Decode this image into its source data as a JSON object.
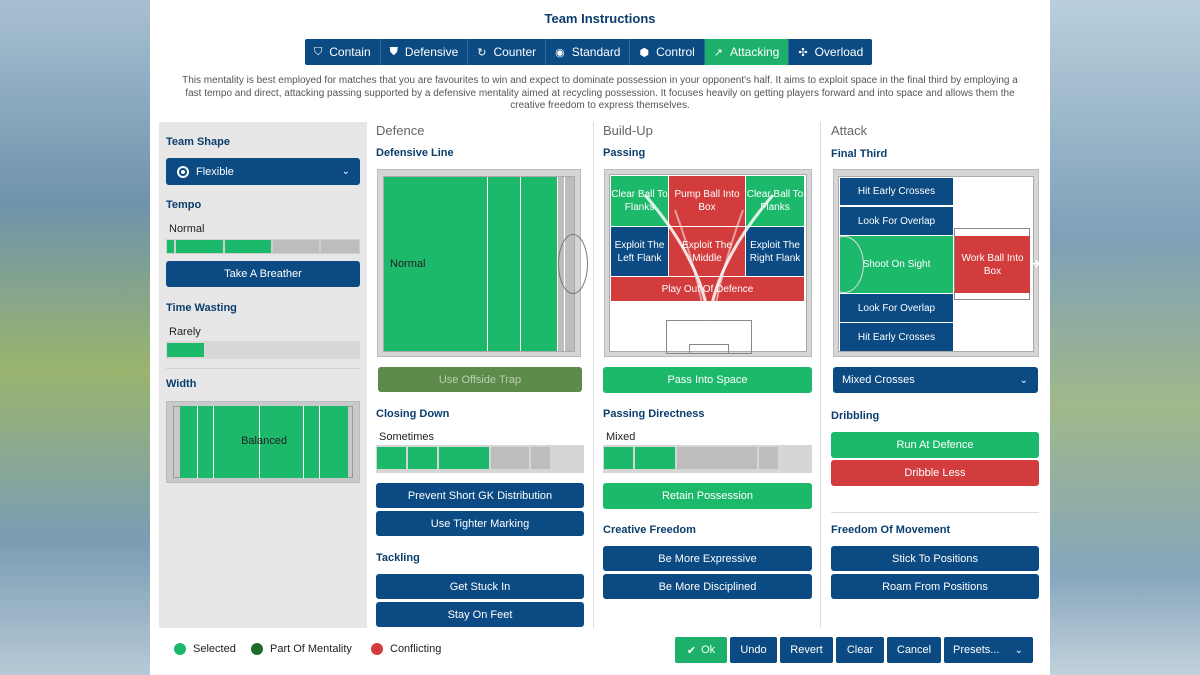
{
  "title": "Team Instructions",
  "mentality_tabs": [
    {
      "label": "Contain",
      "icon": "shield-icon"
    },
    {
      "label": "Defensive",
      "icon": "shield-icon"
    },
    {
      "label": "Counter",
      "icon": "counter-icon"
    },
    {
      "label": "Standard",
      "icon": "standard-icon"
    },
    {
      "label": "Control",
      "icon": "control-icon"
    },
    {
      "label": "Attacking",
      "icon": "attacking-icon",
      "selected": true
    },
    {
      "label": "Overload",
      "icon": "overload-icon"
    }
  ],
  "description": "This mentality is best employed for matches that you are favourites to win and expect to dominate possession in your opponent's half. It aims to exploit space in the final third by employing a fast tempo and direct, attacking passing supported by a defensive mentality aimed at recycling possession. It focuses heavily on getting players forward and into space and allows them the creative freedom to express themselves.",
  "left": {
    "team_shape_label": "Team Shape",
    "team_shape_value": "Flexible",
    "tempo_label": "Tempo",
    "tempo_value": "Normal",
    "tempo_level": 3,
    "take_breather": "Take A Breather",
    "time_wasting_label": "Time Wasting",
    "time_wasting_value": "Rarely",
    "width_label": "Width",
    "width_value": "Balanced"
  },
  "defence": {
    "header": "Defence",
    "line_label": "Defensive Line",
    "line_value": "Normal",
    "offside_trap": "Use Offside Trap",
    "closing_label": "Closing Down",
    "closing_value": "Sometimes",
    "prevent_gk": "Prevent Short GK Distribution",
    "tighter_marking": "Use Tighter Marking",
    "tackling_label": "Tackling",
    "get_stuck_in": "Get Stuck In",
    "stay_on_feet": "Stay On Feet"
  },
  "buildup": {
    "header": "Build-Up",
    "passing_label": "Passing",
    "zones": {
      "clear_left": "Clear Ball To Flanks",
      "pump": "Pump Ball Into Box",
      "clear_right": "Clear Ball To Flanks",
      "exploit_left": "Exploit The Left Flank",
      "exploit_middle": "Exploit The Middle",
      "exploit_right": "Exploit The Right Flank",
      "play_out": "Play Out Of Defence"
    },
    "pass_into_space": "Pass Into Space",
    "directness_label": "Passing Directness",
    "directness_value": "Mixed",
    "retain_possession": "Retain Possession",
    "creative_label": "Creative Freedom",
    "more_expressive": "Be More Expressive",
    "more_disciplined": "Be More Disciplined"
  },
  "attack": {
    "header": "Attack",
    "final_third_label": "Final Third",
    "zones": {
      "hit_early_top": "Hit Early Crosses",
      "overlap_top": "Look For Overlap",
      "shoot_on_sight": "Shoot On Sight",
      "work_ball": "Work Ball Into Box",
      "overlap_bottom": "Look For Overlap",
      "hit_early_bottom": "Hit Early Crosses"
    },
    "crosses_value": "Mixed Crosses",
    "dribbling_label": "Dribbling",
    "run_at_defence": "Run At Defence",
    "dribble_less": "Dribble Less",
    "freedom_label": "Freedom Of Movement",
    "stick_positions": "Stick To Positions",
    "roam_positions": "Roam From Positions"
  },
  "legend": {
    "selected": "Selected",
    "part_of_mentality": "Part Of Mentality",
    "conflicting": "Conflicting"
  },
  "footer": {
    "ok": "Ok",
    "undo": "Undo",
    "revert": "Revert",
    "clear": "Clear",
    "cancel": "Cancel",
    "presets": "Presets..."
  },
  "colors": {
    "selected": "#1db96b",
    "part_of_mentality": "#1f6b2a",
    "conflicting": "#d23c3c",
    "brand": "#0b4a82"
  }
}
